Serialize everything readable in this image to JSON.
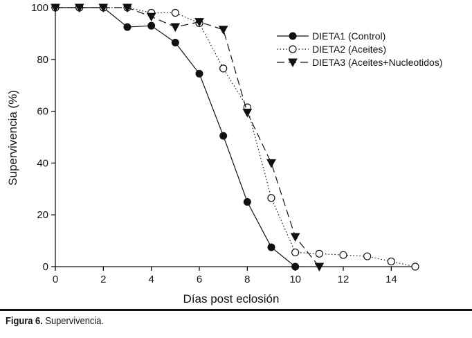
{
  "chart_data": {
    "type": "line",
    "xlabel": "Días post eclosión",
    "ylabel": "Supervivencia (%)",
    "xlim": [
      0,
      15
    ],
    "ylim": [
      0,
      100
    ],
    "xticks": [
      0,
      2,
      4,
      6,
      8,
      10,
      12,
      14
    ],
    "yticks": [
      0,
      20,
      40,
      60,
      80,
      100
    ],
    "grid": false,
    "legend_position": "top-right",
    "series": [
      {
        "name": "DIETA1 (Control)",
        "marker": "filled-circle",
        "line": "solid",
        "x": [
          0,
          1,
          2,
          3,
          4,
          5,
          6,
          7,
          8,
          9,
          10
        ],
        "values": [
          100,
          100,
          100,
          92.5,
          93,
          86.5,
          74.5,
          50.5,
          25,
          7.5,
          0
        ]
      },
      {
        "name": "DIETA2 (Aceites)",
        "marker": "open-circle",
        "line": "dotted",
        "x": [
          0,
          1,
          2,
          3,
          4,
          5,
          6,
          7,
          8,
          9,
          10,
          11,
          12,
          13,
          14,
          15
        ],
        "values": [
          100,
          100,
          100,
          100,
          98,
          98,
          94,
          76.5,
          61.5,
          26.5,
          5.5,
          5,
          4.5,
          4,
          2,
          0
        ]
      },
      {
        "name": "DIETA3 (Aceites+Nucleotidos)",
        "marker": "filled-triangle-down",
        "line": "dashed",
        "x": [
          0,
          1,
          2,
          3,
          4,
          5,
          6,
          7,
          8,
          9,
          10,
          11
        ],
        "values": [
          100,
          100,
          100,
          100,
          96.5,
          92.5,
          94.5,
          91.5,
          59.5,
          40,
          11.5,
          0
        ]
      }
    ]
  },
  "caption": {
    "label": "Figura 6.",
    "text": " Supervivencia."
  }
}
